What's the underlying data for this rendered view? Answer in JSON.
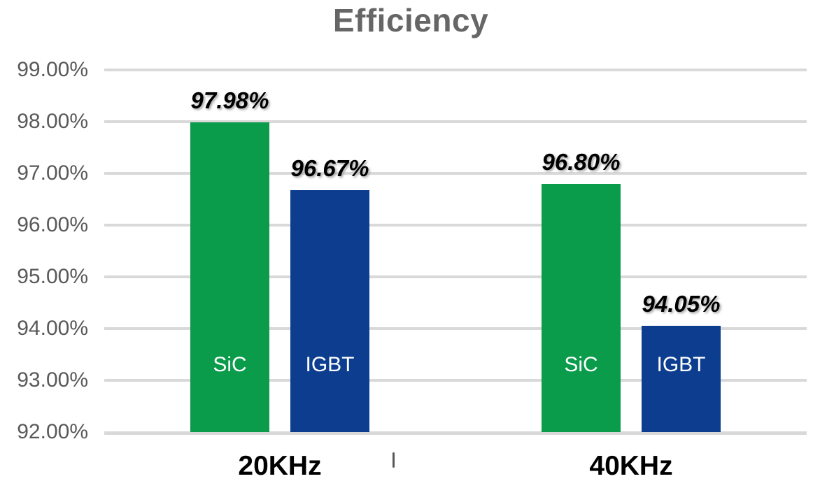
{
  "title": "Efficiency",
  "chart_data": {
    "type": "bar",
    "title": "Efficiency",
    "categories": [
      "20KHz",
      "40KHz"
    ],
    "series": [
      {
        "name": "SiC",
        "color": "#0A9B4B",
        "values": [
          97.98,
          96.8
        ],
        "value_labels": [
          "97.98%",
          "96.80%"
        ]
      },
      {
        "name": "IGBT",
        "color": "#0C3D8F",
        "values": [
          96.67,
          94.05
        ],
        "value_labels": [
          "96.67%",
          "94.05%"
        ]
      }
    ],
    "ylim": [
      92,
      99
    ],
    "y_tick_step": 1,
    "y_tick_labels": [
      "99.00%",
      "98.00%",
      "97.00%",
      "96.00%",
      "95.00%",
      "94.00%",
      "93.00%",
      "92.00%"
    ],
    "xlabel": "",
    "ylabel": "",
    "grid": true,
    "legend_position": "labels-inside-bars",
    "data_labels_shown": true
  },
  "colors": {
    "sic_green": "#0A9B4B",
    "igbt_blue": "#0C3D8F",
    "gridline": "#D9D9D9",
    "axis_text": "#595959",
    "title_text": "#666666",
    "data_label_text": "#000000",
    "bar_inner_text": "#FFFFFF",
    "background": "#FFFFFF"
  }
}
